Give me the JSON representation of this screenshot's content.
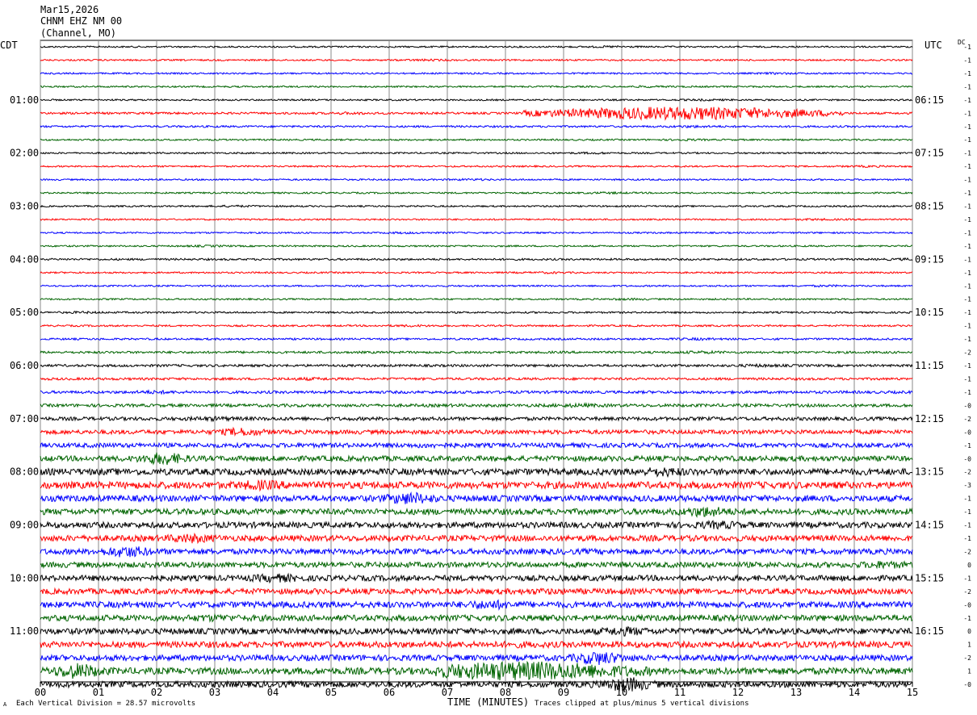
{
  "header": {
    "date": "Mar15,2026",
    "station": "CHNM EHZ NM 00",
    "channel_info": "(Channel, MO)"
  },
  "tz_left": "CDT",
  "tz_right": "UTC",
  "dc_label": "DC",
  "footer": {
    "mark": "A",
    "scale_note": "Each Vertical Division =   28.57 microvolts",
    "xlabel": "TIME (MINUTES)",
    "clip_note": "Traces clipped at plus/minus 5 vertical divisions"
  },
  "chart_data": {
    "type": "line",
    "title": "CHNM EHZ NM 00",
    "xlabel": "TIME (MINUTES)",
    "ylabel": "",
    "xlim": [
      0,
      15
    ],
    "x_ticks": [
      "00",
      "01",
      "02",
      "03",
      "04",
      "05",
      "06",
      "07",
      "08",
      "09",
      "10",
      "11",
      "12",
      "13",
      "14",
      "15"
    ],
    "grid": true,
    "trace_colors": [
      "#000000",
      "#ff0000",
      "#0000ff",
      "#006400"
    ],
    "left_hour_labels": [
      "01:00",
      "02:00",
      "03:00",
      "04:00",
      "05:00",
      "06:00",
      "07:00",
      "08:00",
      "09:00",
      "10:00",
      "11:00"
    ],
    "right_hour_labels": [
      "06:15",
      "07:15",
      "08:15",
      "09:15",
      "10:15",
      "11:15",
      "12:15",
      "13:15",
      "14:15",
      "15:15",
      "16:15"
    ],
    "dc_offsets": [
      "-1",
      "-1",
      "-1",
      "-1",
      "-1",
      "-1",
      "-1",
      "-1",
      "-1",
      "-1",
      "-1",
      "-1",
      "-1",
      "-1",
      "-1",
      "-1",
      "-1",
      "-1",
      "-1",
      "-1",
      "-1",
      "-1",
      "-1",
      "-2",
      "-1",
      "-1",
      "-1",
      "-0",
      "-2",
      "-0",
      "-1",
      "-0",
      "-2",
      "-3",
      "-1",
      "-1",
      "-1",
      "-1",
      "-2",
      "0",
      "-1",
      "-2",
      "-0",
      "-1",
      "0",
      "1",
      "-2",
      "1",
      "-0"
    ],
    "trace_amplitude": [
      1,
      1,
      1,
      1,
      1,
      1.3,
      1.2,
      1,
      1,
      1,
      1,
      1,
      1,
      1,
      1,
      1,
      1.2,
      1,
      1,
      1,
      1.1,
      1.1,
      1.2,
      1.4,
      1.5,
      1.5,
      1.7,
      1.9,
      2.2,
      2.6,
      2.8,
      3.3,
      4,
      4.3,
      3.8,
      3.7,
      3.6,
      3.6,
      3.5,
      3.4,
      3.5,
      3.5,
      3.8,
      3.7,
      3.7,
      3.8,
      3.6,
      4.2,
      3.8
    ],
    "events": [
      {
        "trace": 5,
        "start_min": 8.3,
        "end_min": 13.8,
        "peak_min": 11.0,
        "amplitude": 7
      },
      {
        "trace": 47,
        "start_min": 6.8,
        "end_min": 10.5,
        "peak_min": 8.3,
        "amplitude": 8
      }
    ]
  }
}
